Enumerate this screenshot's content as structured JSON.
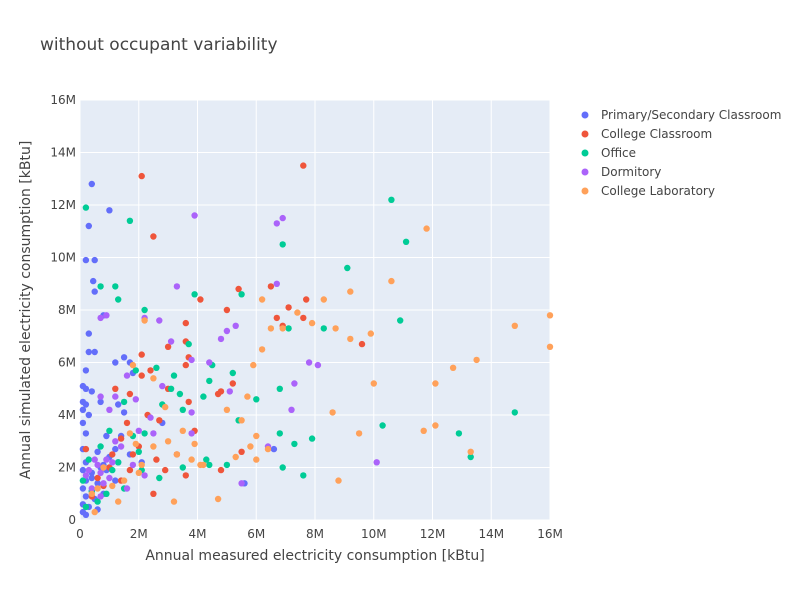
{
  "chart_data": {
    "type": "scatter",
    "title": "without occupant variability",
    "xlabel": "Annual measured electricity consumption [kBtu]",
    "ylabel": "Annual simulated electricity consumption [kBtu]",
    "xlim": [
      0,
      16000000
    ],
    "ylim": [
      0,
      16000000
    ],
    "x_ticks": [
      0,
      2000000,
      4000000,
      6000000,
      8000000,
      10000000,
      12000000,
      14000000,
      16000000
    ],
    "x_tick_labels": [
      "0",
      "2M",
      "4M",
      "6M",
      "8M",
      "10M",
      "12M",
      "14M",
      "16M"
    ],
    "y_ticks": [
      0,
      2000000,
      4000000,
      6000000,
      8000000,
      10000000,
      12000000,
      14000000,
      16000000
    ],
    "y_tick_labels": [
      "0",
      "2M",
      "4M",
      "6M",
      "8M",
      "10M",
      "12M",
      "14M",
      "16M"
    ],
    "grid": true,
    "legend_position": "right",
    "series": [
      {
        "name": "Primary/Secondary Classroom",
        "color": "#636efa",
        "points": [
          [
            400000,
            12800000
          ],
          [
            300000,
            11200000
          ],
          [
            1000000,
            11800000
          ],
          [
            200000,
            9900000
          ],
          [
            500000,
            9900000
          ],
          [
            450000,
            9100000
          ],
          [
            500000,
            8700000
          ],
          [
            800000,
            7800000
          ],
          [
            300000,
            7100000
          ],
          [
            300000,
            6400000
          ],
          [
            500000,
            6400000
          ],
          [
            1500000,
            6200000
          ],
          [
            1700000,
            6000000
          ],
          [
            1200000,
            6000000
          ],
          [
            200000,
            5700000
          ],
          [
            1800000,
            5600000
          ],
          [
            100000,
            5100000
          ],
          [
            200000,
            5000000
          ],
          [
            400000,
            4900000
          ],
          [
            100000,
            4500000
          ],
          [
            700000,
            4500000
          ],
          [
            200000,
            4400000
          ],
          [
            1300000,
            4400000
          ],
          [
            100000,
            4200000
          ],
          [
            300000,
            4000000
          ],
          [
            1500000,
            4100000
          ],
          [
            100000,
            3700000
          ],
          [
            200000,
            3300000
          ],
          [
            900000,
            3200000
          ],
          [
            1400000,
            3200000
          ],
          [
            100000,
            2700000
          ],
          [
            600000,
            2600000
          ],
          [
            1200000,
            2700000
          ],
          [
            1700000,
            2500000
          ],
          [
            200000,
            2200000
          ],
          [
            800000,
            2100000
          ],
          [
            1300000,
            2200000
          ],
          [
            100000,
            1900000
          ],
          [
            400000,
            1800000
          ],
          [
            900000,
            1900000
          ],
          [
            200000,
            1500000
          ],
          [
            600000,
            1400000
          ],
          [
            1200000,
            1500000
          ],
          [
            100000,
            1200000
          ],
          [
            400000,
            1100000
          ],
          [
            800000,
            1000000
          ],
          [
            200000,
            900000
          ],
          [
            500000,
            800000
          ],
          [
            100000,
            600000
          ],
          [
            300000,
            500000
          ],
          [
            600000,
            400000
          ],
          [
            100000,
            300000
          ],
          [
            200000,
            200000
          ],
          [
            400000,
            1600000
          ],
          [
            700000,
            2000000
          ],
          [
            1000000,
            2400000
          ],
          [
            5600000,
            1400000
          ],
          [
            6600000,
            2700000
          ],
          [
            2100000,
            2200000
          ],
          [
            2800000,
            3700000
          ]
        ]
      },
      {
        "name": "College Classroom",
        "color": "#EF553B",
        "points": [
          [
            2100000,
            13100000
          ],
          [
            7600000,
            13500000
          ],
          [
            2500000,
            10800000
          ],
          [
            6500000,
            8900000
          ],
          [
            7700000,
            8400000
          ],
          [
            5400000,
            8800000
          ],
          [
            4100000,
            8400000
          ],
          [
            7100000,
            8100000
          ],
          [
            5000000,
            8000000
          ],
          [
            7600000,
            7700000
          ],
          [
            6700000,
            7700000
          ],
          [
            3600000,
            7500000
          ],
          [
            3600000,
            6800000
          ],
          [
            3000000,
            6600000
          ],
          [
            2100000,
            6300000
          ],
          [
            3700000,
            6200000
          ],
          [
            3600000,
            5900000
          ],
          [
            2400000,
            5700000
          ],
          [
            2100000,
            5500000
          ],
          [
            5200000,
            5200000
          ],
          [
            9600000,
            6700000
          ],
          [
            6900000,
            7400000
          ],
          [
            3000000,
            5000000
          ],
          [
            4800000,
            4900000
          ],
          [
            1200000,
            5000000
          ],
          [
            1700000,
            4800000
          ],
          [
            3700000,
            4500000
          ],
          [
            4700000,
            4800000
          ],
          [
            2300000,
            4000000
          ],
          [
            2700000,
            3800000
          ],
          [
            1600000,
            3700000
          ],
          [
            3900000,
            3400000
          ],
          [
            1400000,
            3100000
          ],
          [
            2000000,
            2800000
          ],
          [
            1800000,
            2500000
          ],
          [
            3300000,
            2500000
          ],
          [
            1100000,
            2500000
          ],
          [
            5500000,
            2600000
          ],
          [
            2600000,
            2300000
          ],
          [
            3600000,
            1700000
          ],
          [
            2900000,
            1900000
          ],
          [
            1400000,
            1500000
          ],
          [
            800000,
            1300000
          ],
          [
            2500000,
            1000000
          ],
          [
            400000,
            900000
          ],
          [
            1700000,
            1900000
          ],
          [
            200000,
            2700000
          ],
          [
            4800000,
            1900000
          ],
          [
            600000,
            1600000
          ],
          [
            1000000,
            2000000
          ]
        ]
      },
      {
        "name": "Office",
        "color": "#00cc96",
        "points": [
          [
            200000,
            11900000
          ],
          [
            1700000,
            11400000
          ],
          [
            10600000,
            12200000
          ],
          [
            11100000,
            10600000
          ],
          [
            6900000,
            10500000
          ],
          [
            9100000,
            9600000
          ],
          [
            700000,
            8900000
          ],
          [
            3900000,
            8600000
          ],
          [
            2200000,
            8000000
          ],
          [
            1300000,
            8400000
          ],
          [
            5500000,
            8600000
          ],
          [
            7100000,
            7300000
          ],
          [
            10900000,
            7600000
          ],
          [
            1200000,
            8900000
          ],
          [
            3700000,
            6700000
          ],
          [
            4500000,
            5900000
          ],
          [
            4400000,
            5300000
          ],
          [
            5200000,
            5600000
          ],
          [
            2600000,
            5800000
          ],
          [
            3200000,
            5500000
          ],
          [
            3100000,
            5000000
          ],
          [
            4200000,
            4700000
          ],
          [
            1500000,
            4500000
          ],
          [
            2800000,
            4400000
          ],
          [
            3500000,
            4200000
          ],
          [
            6000000,
            4600000
          ],
          [
            14800000,
            4100000
          ],
          [
            10300000,
            3600000
          ],
          [
            12900000,
            3300000
          ],
          [
            13300000,
            2400000
          ],
          [
            7300000,
            2900000
          ],
          [
            7900000,
            3100000
          ],
          [
            6800000,
            3300000
          ],
          [
            6900000,
            2000000
          ],
          [
            7600000,
            1700000
          ],
          [
            5000000,
            2100000
          ],
          [
            4400000,
            2100000
          ],
          [
            3500000,
            2000000
          ],
          [
            2200000,
            3300000
          ],
          [
            1800000,
            3200000
          ],
          [
            1000000,
            3400000
          ],
          [
            700000,
            2800000
          ],
          [
            1300000,
            2200000
          ],
          [
            2100000,
            1900000
          ],
          [
            2700000,
            1600000
          ],
          [
            1500000,
            1200000
          ],
          [
            900000,
            1000000
          ],
          [
            600000,
            700000
          ],
          [
            200000,
            500000
          ],
          [
            400000,
            1100000
          ],
          [
            100000,
            1500000
          ],
          [
            1100000,
            1900000
          ],
          [
            300000,
            2300000
          ],
          [
            2000000,
            2600000
          ],
          [
            4300000,
            2300000
          ],
          [
            5400000,
            3800000
          ],
          [
            1900000,
            5700000
          ],
          [
            6800000,
            5000000
          ],
          [
            8300000,
            7300000
          ],
          [
            3400000,
            4800000
          ]
        ]
      },
      {
        "name": "Dormitory",
        "color": "#ab63fa",
        "points": [
          [
            3900000,
            11600000
          ],
          [
            6900000,
            11500000
          ],
          [
            6700000,
            11300000
          ],
          [
            3300000,
            8900000
          ],
          [
            6700000,
            9000000
          ],
          [
            2200000,
            7700000
          ],
          [
            2700000,
            7600000
          ],
          [
            5300000,
            7400000
          ],
          [
            5000000,
            7200000
          ],
          [
            4800000,
            6900000
          ],
          [
            3100000,
            6800000
          ],
          [
            3800000,
            6100000
          ],
          [
            7300000,
            5200000
          ],
          [
            7800000,
            6000000
          ],
          [
            8100000,
            5900000
          ],
          [
            2800000,
            5100000
          ],
          [
            1600000,
            5500000
          ],
          [
            700000,
            7700000
          ],
          [
            900000,
            7800000
          ],
          [
            4400000,
            6000000
          ],
          [
            5100000,
            4900000
          ],
          [
            7200000,
            4200000
          ],
          [
            10100000,
            2200000
          ],
          [
            5500000,
            1400000
          ],
          [
            6400000,
            2800000
          ],
          [
            3800000,
            4100000
          ],
          [
            2400000,
            3900000
          ],
          [
            2000000,
            3400000
          ],
          [
            1000000,
            4200000
          ],
          [
            700000,
            4700000
          ],
          [
            1200000,
            4700000
          ],
          [
            1900000,
            4600000
          ],
          [
            1200000,
            3000000
          ],
          [
            1400000,
            2800000
          ],
          [
            900000,
            2300000
          ],
          [
            600000,
            2100000
          ],
          [
            700000,
            1800000
          ],
          [
            1000000,
            1600000
          ],
          [
            400000,
            1200000
          ],
          [
            700000,
            900000
          ],
          [
            300000,
            1900000
          ],
          [
            500000,
            2300000
          ],
          [
            1800000,
            2100000
          ],
          [
            2500000,
            3300000
          ],
          [
            2200000,
            1700000
          ],
          [
            3800000,
            3300000
          ],
          [
            1600000,
            1200000
          ],
          [
            1100000,
            2200000
          ],
          [
            800000,
            1400000
          ],
          [
            200000,
            1700000
          ]
        ]
      },
      {
        "name": "College Laboratory",
        "color": "#FFA15A",
        "points": [
          [
            11800000,
            11100000
          ],
          [
            10600000,
            9100000
          ],
          [
            9200000,
            8700000
          ],
          [
            8300000,
            8400000
          ],
          [
            6200000,
            8400000
          ],
          [
            7400000,
            7900000
          ],
          [
            7900000,
            7500000
          ],
          [
            6500000,
            7300000
          ],
          [
            6900000,
            7300000
          ],
          [
            8700000,
            7300000
          ],
          [
            2200000,
            7600000
          ],
          [
            9900000,
            7100000
          ],
          [
            9200000,
            6900000
          ],
          [
            14800000,
            7400000
          ],
          [
            16000000,
            7800000
          ],
          [
            16000000,
            6600000
          ],
          [
            13500000,
            6100000
          ],
          [
            12700000,
            5800000
          ],
          [
            12100000,
            5200000
          ],
          [
            10000000,
            5200000
          ],
          [
            6200000,
            6500000
          ],
          [
            5900000,
            5900000
          ],
          [
            5700000,
            4700000
          ],
          [
            5000000,
            4200000
          ],
          [
            5500000,
            3800000
          ],
          [
            6000000,
            3200000
          ],
          [
            5800000,
            2800000
          ],
          [
            5300000,
            2400000
          ],
          [
            8600000,
            4100000
          ],
          [
            11700000,
            3400000
          ],
          [
            12100000,
            3600000
          ],
          [
            9500000,
            3300000
          ],
          [
            8800000,
            1500000
          ],
          [
            13300000,
            2600000
          ],
          [
            6000000,
            2300000
          ],
          [
            6400000,
            2700000
          ],
          [
            4700000,
            800000
          ],
          [
            3200000,
            700000
          ],
          [
            3900000,
            2900000
          ],
          [
            4100000,
            2100000
          ],
          [
            3500000,
            3400000
          ],
          [
            2900000,
            4300000
          ],
          [
            2500000,
            5400000
          ],
          [
            1800000,
            5900000
          ],
          [
            1700000,
            3300000
          ],
          [
            1900000,
            2900000
          ],
          [
            2100000,
            2100000
          ],
          [
            1500000,
            1500000
          ],
          [
            1100000,
            1300000
          ],
          [
            800000,
            2000000
          ],
          [
            600000,
            1200000
          ],
          [
            400000,
            1000000
          ],
          [
            500000,
            300000
          ],
          [
            1300000,
            700000
          ],
          [
            2000000,
            1800000
          ],
          [
            3300000,
            2500000
          ],
          [
            4200000,
            2100000
          ],
          [
            3800000,
            2300000
          ],
          [
            2500000,
            2800000
          ],
          [
            3000000,
            3000000
          ]
        ]
      }
    ]
  }
}
